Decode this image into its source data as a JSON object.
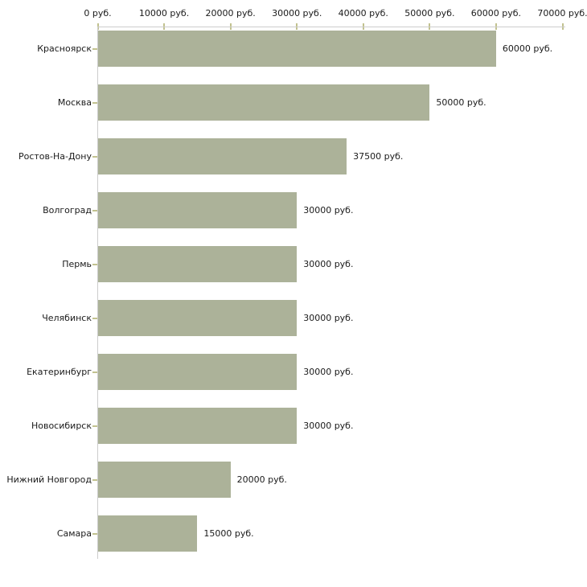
{
  "chart_data": {
    "type": "bar",
    "orientation": "horizontal",
    "title": "",
    "unit": "руб.",
    "categories": [
      "Красноярск",
      "Москва",
      "Ростов-На-Дону",
      "Волгоград",
      "Пермь",
      "Челябинск",
      "Екатеринбург",
      "Новосибирск",
      "Нижний Новгород",
      "Самара"
    ],
    "values": [
      60000,
      50000,
      37500,
      30000,
      30000,
      30000,
      30000,
      30000,
      20000,
      15000
    ],
    "value_labels": [
      "60000 руб.",
      "50000 руб.",
      "37500 руб.",
      "30000 руб.",
      "30000 руб.",
      "30000 руб.",
      "30000 руб.",
      "30000 руб.",
      "20000 руб.",
      "15000 руб."
    ],
    "x_axis": {
      "position": "top",
      "range": [
        0,
        70000
      ],
      "ticks": [
        0,
        10000,
        20000,
        30000,
        40000,
        50000,
        60000,
        70000
      ],
      "tick_labels": [
        "0 руб.",
        "10000 руб.",
        "20000 руб.",
        "30000 руб.",
        "40000 руб.",
        "50000 руб.",
        "60000 руб.",
        "70000 руб."
      ]
    },
    "grid": false,
    "legend": false,
    "colors": {
      "bar_fill": "#acb299",
      "axis_line": "#cccccc",
      "tick_mark": "#c2c28f",
      "text": "#1a1a1a",
      "background": "#ffffff"
    }
  }
}
